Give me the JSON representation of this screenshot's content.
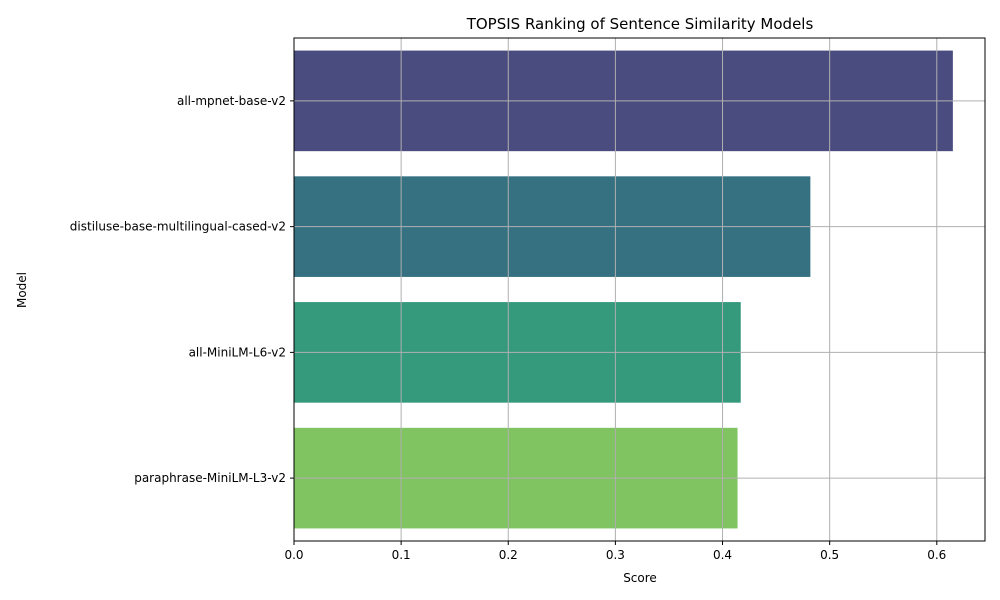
{
  "chart_data": {
    "type": "bar",
    "orientation": "horizontal",
    "title": "TOPSIS Ranking of Sentence Similarity Models",
    "xlabel": "Score",
    "ylabel": "Model",
    "categories": [
      "all-mpnet-base-v2",
      "distiluse-base-multilingual-cased-v2",
      "all-MiniLM-L6-v2",
      "paraphrase-MiniLM-L3-v2"
    ],
    "values": [
      0.615,
      0.482,
      0.417,
      0.414
    ],
    "colors": [
      "#4a4c7f",
      "#367182",
      "#35997c",
      "#80c361"
    ],
    "xlim": [
      0,
      0.645
    ],
    "xticks": [
      "0.0",
      "0.1",
      "0.2",
      "0.3",
      "0.4",
      "0.5",
      "0.6"
    ],
    "xtick_values": [
      0,
      0.1,
      0.2,
      0.3,
      0.4,
      0.5,
      0.6
    ],
    "grid": true
  }
}
